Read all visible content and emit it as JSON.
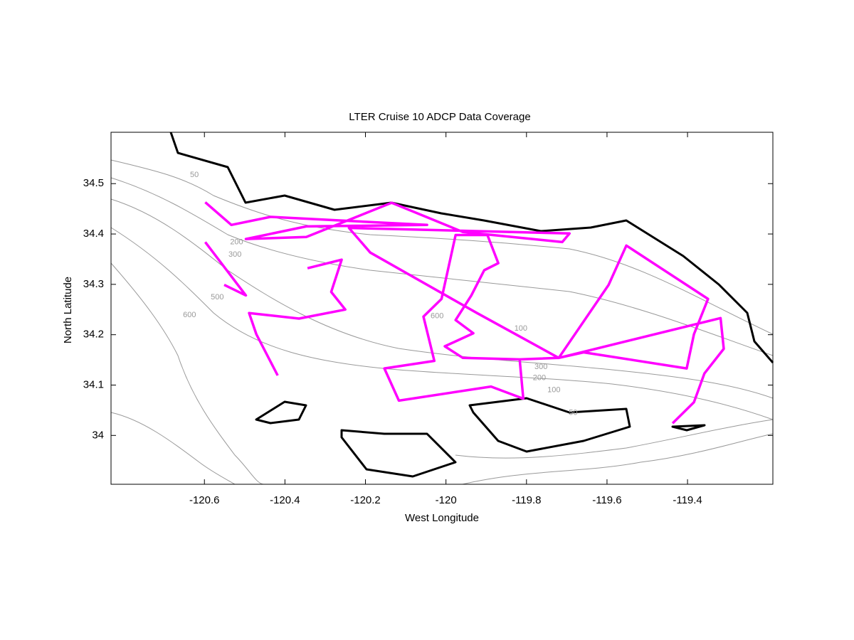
{
  "chart_data": {
    "type": "line",
    "title": "LTER Cruise 10 ADCP Data Coverage",
    "x_label": "West Longitude",
    "y_label": "North Latitude",
    "xlim": [
      -120.832,
      -119.188
    ],
    "ylim": [
      33.903,
      34.602
    ],
    "xticks": [
      -120.6,
      -120.4,
      -120.2,
      -120,
      -119.8,
      -119.6,
      -119.4
    ],
    "yticks": [
      34,
      34.1,
      34.2,
      34.3,
      34.4,
      34.5
    ],
    "series": [
      {
        "color": "#ff00ff",
        "x": [
          -120.598,
          -120.533,
          -120.436,
          -120.047,
          -120.347,
          -120.497,
          -120.347,
          -120.135,
          -119.958,
          -119.711,
          -119.693,
          -120.241,
          -120.188,
          -119.923,
          -119.72,
          -119.596,
          -119.552,
          -119.349,
          -119.384,
          -119.402,
          -119.658,
          -119.72,
          -119.817,
          -119.808,
          -119.888,
          -120.117,
          -120.153,
          -120.029,
          -120.056,
          -120.011,
          -119.976,
          -119.897,
          -119.87,
          -119.905,
          -119.937,
          -119.976,
          -119.932,
          -120.003,
          -119.958,
          -119.817,
          -119.72,
          -119.318,
          -119.31,
          -119.358,
          -119.384,
          -119.437,
          null,
          -120.344,
          -120.259,
          -120.285,
          -120.25,
          -120.365,
          -120.489,
          -120.471,
          -120.418,
          null,
          -120.598,
          -120.497,
          -120.551
        ],
        "y": [
          34.463,
          34.418,
          34.434,
          34.418,
          34.415,
          34.39,
          34.394,
          34.462,
          34.404,
          34.384,
          34.401,
          34.412,
          34.363,
          34.243,
          34.154,
          34.299,
          34.377,
          34.271,
          34.201,
          34.133,
          34.165,
          34.154,
          34.151,
          34.073,
          34.097,
          34.069,
          34.133,
          34.148,
          34.236,
          34.271,
          34.398,
          34.398,
          34.342,
          34.328,
          34.278,
          34.229,
          34.203,
          34.177,
          34.154,
          34.151,
          34.154,
          34.233,
          34.172,
          34.123,
          34.066,
          34.024,
          null,
          34.332,
          34.349,
          34.285,
          34.25,
          34.232,
          34.243,
          34.201,
          34.119,
          null,
          34.384,
          34.278,
          34.299
        ]
      }
    ],
    "annotations": [
      {
        "text": "50",
        "x": -120.625,
        "y": 34.517
      },
      {
        "text": "200",
        "x": -120.52,
        "y": 34.384
      },
      {
        "text": "300",
        "x": -120.524,
        "y": 34.359
      },
      {
        "text": "500",
        "x": -120.568,
        "y": 34.274
      },
      {
        "text": "600",
        "x": -120.637,
        "y": 34.239
      },
      {
        "text": "600",
        "x": -120.022,
        "y": 34.237
      },
      {
        "text": "100",
        "x": -119.814,
        "y": 34.212
      },
      {
        "text": "300",
        "x": -119.764,
        "y": 34.136
      },
      {
        "text": "200",
        "x": -119.768,
        "y": 34.114
      },
      {
        "text": "100",
        "x": -119.732,
        "y": 34.09
      },
      {
        "text": "50",
        "x": -119.684,
        "y": 34.045
      }
    ]
  }
}
